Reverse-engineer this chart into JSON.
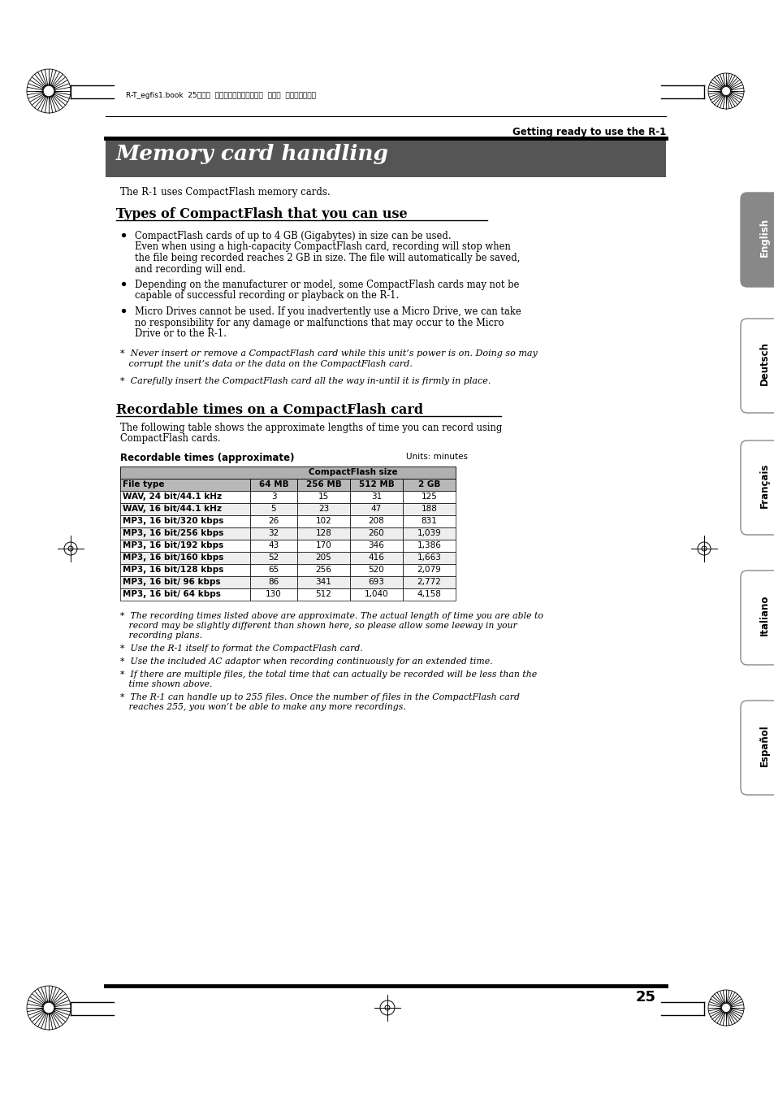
{
  "page_bg": "#ffffff",
  "header_text": "R-T_egfis1.book  25ページ  ２００５年１１月１１日  金曜日  午後５時１３分",
  "top_right_label": "Getting ready to use the R-1",
  "main_title": "Memory card handling",
  "intro_text": "The R-1 uses CompactFlash memory cards.",
  "section1_title": "Types of CompactFlash that you can use",
  "bullet1_line1": "CompactFlash cards of up to 4 GB (Gigabytes) in size can be used.",
  "bullet1_line2": "Even when using a high-capacity CompactFlash card, recording will stop when",
  "bullet1_line3": "the file being recorded reaches 2 GB in size. The file will automatically be saved,",
  "bullet1_line4": "and recording will end.",
  "bullet2_line1": "Depending on the manufacturer or model, some CompactFlash cards may not be",
  "bullet2_line2": "capable of successful recording or playback on the R-1.",
  "bullet3_line1": "Micro Drives cannot be used. If you inadvertently use a Micro Drive, we can take",
  "bullet3_line2": "no responsibility for any damage or malfunctions that may occur to the Micro",
  "bullet3_line3": "Drive or to the R-1.",
  "note1_line1": "*  Never insert or remove a CompactFlash card while this unit’s power is on. Doing so may",
  "note1_line2": "   corrupt the unit’s data or the data on the CompactFlash card.",
  "note2": "*  Carefully insert the CompactFlash card all the way in-until it is firmly in place.",
  "section2_title": "Recordable times on a CompactFlash card",
  "section2_line1": "The following table shows the approximate lengths of time you can record using",
  "section2_line2": "CompactFlash cards.",
  "table_label": "Recordable times (approximate)",
  "table_units": "Units: minutes",
  "table_header_span": "CompactFlash size",
  "table_col_headers": [
    "File type",
    "64 MB",
    "256 MB",
    "512 MB",
    "2 GB"
  ],
  "table_rows": [
    [
      "WAV, 24 bit/44.1 kHz",
      "3",
      "15",
      "31",
      "125"
    ],
    [
      "WAV, 16 bit/44.1 kHz",
      "5",
      "23",
      "47",
      "188"
    ],
    [
      "MP3, 16 bit/320 kbps",
      "26",
      "102",
      "208",
      "831"
    ],
    [
      "MP3, 16 bit/256 kbps",
      "32",
      "128",
      "260",
      "1,039"
    ],
    [
      "MP3, 16 bit/192 kbps",
      "43",
      "170",
      "346",
      "1,386"
    ],
    [
      "MP3, 16 bit/160 kbps",
      "52",
      "205",
      "416",
      "1,663"
    ],
    [
      "MP3, 16 bit/128 kbps",
      "65",
      "256",
      "520",
      "2,079"
    ],
    [
      "MP3, 16 bit/ 96 kbps",
      "86",
      "341",
      "693",
      "2,772"
    ],
    [
      "MP3, 16 bit/ 64 kbps",
      "130",
      "512",
      "1,040",
      "4,158"
    ]
  ],
  "fn1_l1": "*  The recording times listed above are approximate. The actual length of time you are able to",
  "fn1_l2": "   record may be slightly different than shown here, so please allow some leeway in your",
  "fn1_l3": "   recording plans.",
  "fn2": "*  Use the R-1 itself to format the CompactFlash card.",
  "fn3": "*  Use the included AC adaptor when recording continuously for an extended time.",
  "fn4_l1": "*  If there are multiple files, the total time that can actually be recorded will be less than the",
  "fn4_l2": "   time shown above.",
  "fn5_l1": "*  The R-1 can handle up to 255 files. Once the number of files in the CompactFlash card",
  "fn5_l2": "   reaches 255, you won’t be able to make any more recordings.",
  "page_number": "25",
  "side_labels": [
    "English",
    "Deutsch",
    "Français",
    "Italiano",
    "Español"
  ],
  "title_bg_color": "#555555",
  "title_text_color": "#ffffff"
}
